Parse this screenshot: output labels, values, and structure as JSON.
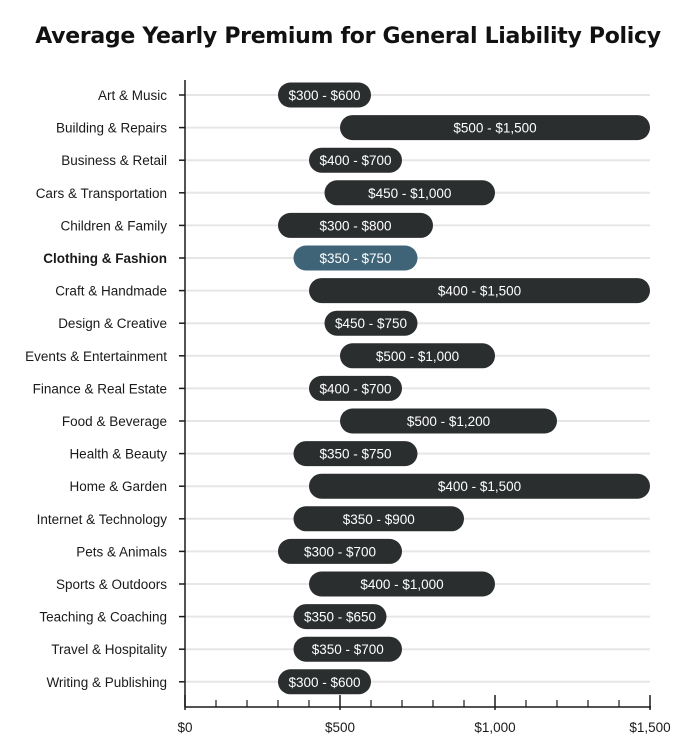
{
  "chart_data": {
    "type": "bar",
    "title": "Average Yearly Premium for General Liability Policy",
    "categories": [
      "Art & Music",
      "Building & Repairs",
      "Business & Retail",
      "Cars & Transportation",
      "Children & Family",
      "Clothing & Fashion",
      "Craft & Handmade",
      "Design & Creative",
      "Events & Entertainment",
      "Finance & Real Estate",
      "Food & Beverage",
      "Health & Beauty",
      "Home & Garden",
      "Internet & Technology",
      "Pets & Animals",
      "Sports & Outdoors",
      "Teaching & Coaching",
      "Travel & Hospitality",
      "Writing & Publishing"
    ],
    "ranges": [
      [
        300,
        600
      ],
      [
        500,
        1500
      ],
      [
        400,
        700
      ],
      [
        450,
        1000
      ],
      [
        300,
        800
      ],
      [
        350,
        750
      ],
      [
        400,
        1500
      ],
      [
        450,
        750
      ],
      [
        500,
        1000
      ],
      [
        400,
        700
      ],
      [
        500,
        1200
      ],
      [
        350,
        750
      ],
      [
        400,
        1500
      ],
      [
        350,
        900
      ],
      [
        300,
        700
      ],
      [
        400,
        1000
      ],
      [
        350,
        650
      ],
      [
        350,
        700
      ],
      [
        300,
        600
      ]
    ],
    "labels": [
      "$300 - $600",
      "$500 - $1,500",
      "$400 - $700",
      "$450 - $1,000",
      "$300 - $800",
      "$350 - $750",
      "$400 - $1,500",
      "$450 - $750",
      "$500 - $1,000",
      "$400 - $700",
      "$500 - $1,200",
      "$350 - $750",
      "$400 - $1,500",
      "$350 - $900",
      "$300 - $700",
      "$400 - $1,000",
      "$350 - $650",
      "$350 - $700",
      "$300 - $600"
    ],
    "highlight_index": 5,
    "xlim": [
      0,
      1500
    ],
    "xticks": [
      0,
      500,
      1000,
      1500
    ],
    "xtick_labels": [
      "$0",
      "$500",
      "$1,000",
      "$1,500"
    ],
    "minor_tick_step": 100,
    "grid": "horizontal row lines",
    "colors": {
      "bar": "#2b2e2f",
      "highlight": "#3f6478",
      "grid": "#e6e6e6",
      "axis": "#1a1a1a"
    }
  }
}
